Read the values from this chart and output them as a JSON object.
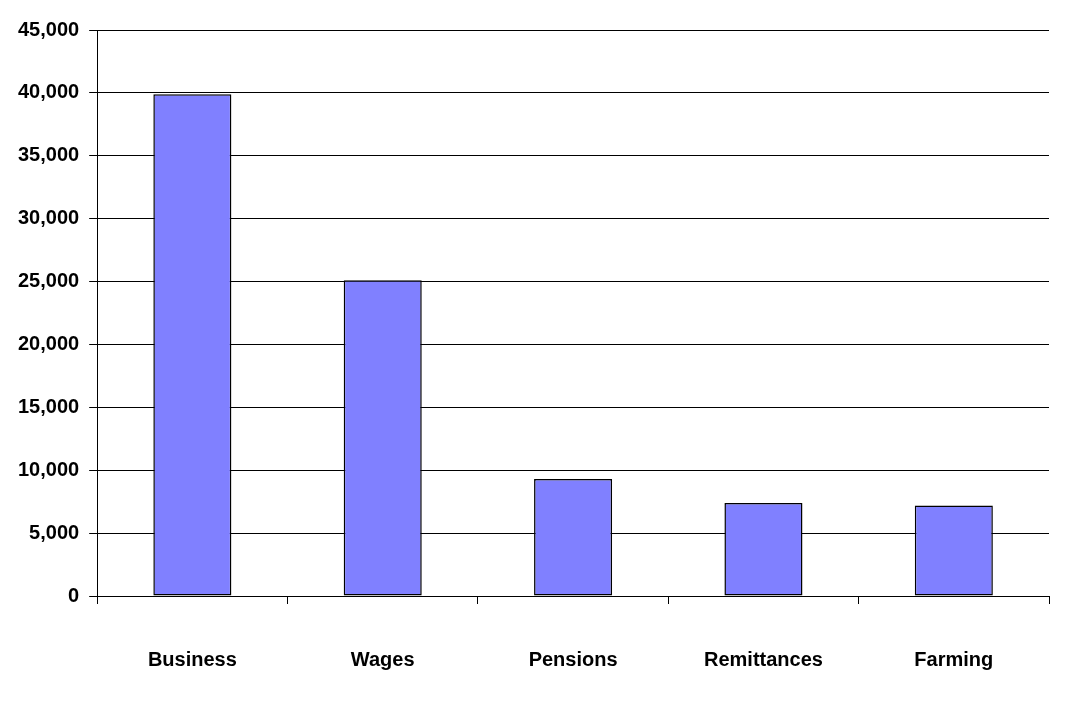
{
  "chart_data": {
    "type": "bar",
    "categories": [
      "Business",
      "Wages",
      "Pensions",
      "Remittances",
      "Farming"
    ],
    "values": [
      39900,
      25100,
      9300,
      7400,
      7200
    ],
    "color": "#8080ff",
    "ylim": [
      0,
      45000
    ],
    "yticks": [
      0,
      {
        "value": 5000,
        "label": "5,000"
      },
      {
        "value": 10000,
        "label": "10,000"
      },
      {
        "value": 15000,
        "label": "15,000"
      },
      {
        "value": 20000,
        "label": "20,000"
      },
      {
        "value": 25000,
        "label": "25,000"
      },
      {
        "value": 30000,
        "label": "30,000"
      },
      {
        "value": 35000,
        "label": "35,000"
      },
      {
        "value": 40000,
        "label": "40,000"
      },
      {
        "value": 45000,
        "label": "45,000"
      }
    ],
    "grid": "y",
    "legend": false
  }
}
